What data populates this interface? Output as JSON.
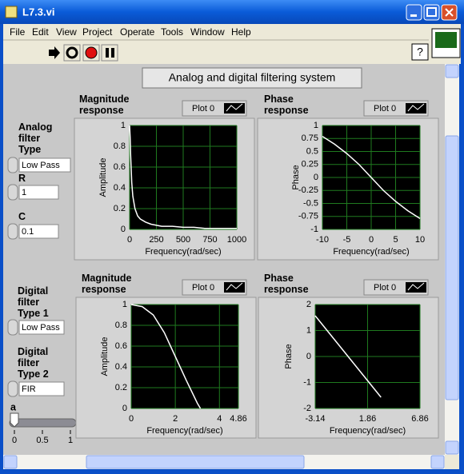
{
  "window": {
    "title": "L7.3.vi"
  },
  "menu": [
    "File",
    "Edit",
    "View",
    "Project",
    "Operate",
    "Tools",
    "Window",
    "Help"
  ],
  "front_panel": {
    "title": "Analog and digital filtering system",
    "controls": {
      "analog_type": {
        "label": "Analog filter Type",
        "value": "Low Pass"
      },
      "r": {
        "label": "R",
        "value": "1"
      },
      "c": {
        "label": "C",
        "value": "0.1"
      },
      "digital_type_1": {
        "label": "Digital filter Type 1",
        "value": "Low Pass"
      },
      "digital_type_2": {
        "label": "Digital filter Type 2",
        "value": "FIR"
      },
      "a": {
        "label": "a",
        "value": 0,
        "lim": [
          0,
          1
        ],
        "ticks": [
          0,
          0.5,
          1
        ]
      }
    }
  },
  "charts": [
    {
      "type": "line",
      "title": "Magnitude response",
      "xlabel": "Frequency(rad/sec)",
      "ylabel": "Amplitude",
      "x": [
        0,
        5,
        10,
        20,
        30,
        50,
        75,
        100,
        150,
        200,
        300,
        400,
        500,
        600,
        700,
        800,
        900,
        1000
      ],
      "series": [
        {
          "name": "Plot 0",
          "color": "#ffffff",
          "values": [
            1,
            0.89,
            0.71,
            0.45,
            0.32,
            0.2,
            0.13,
            0.1,
            0.07,
            0.05,
            0.03,
            0.03,
            0.02,
            0.02,
            0.01,
            0.01,
            0.01,
            0.01
          ]
        }
      ],
      "xlim": [
        0,
        1000
      ],
      "ylim": [
        0,
        1
      ],
      "xticks": [
        0,
        250,
        500,
        750,
        1000
      ],
      "yticks": [
        0,
        0.2,
        0.4,
        0.6,
        0.8,
        1
      ],
      "grid": true
    },
    {
      "type": "line",
      "title": "Phase response",
      "xlabel": "Frequency(rad/sec)",
      "ylabel": "Phase",
      "x": [
        -10,
        -7.5,
        -5,
        -2.5,
        0,
        2.5,
        5,
        7.5,
        10
      ],
      "series": [
        {
          "name": "Plot 0",
          "color": "#ffffff",
          "values": [
            0.79,
            0.64,
            0.46,
            0.25,
            0,
            -0.25,
            -0.46,
            -0.64,
            -0.79
          ]
        }
      ],
      "xlim": [
        -10,
        10
      ],
      "ylim": [
        -1,
        1
      ],
      "xticks": [
        -10,
        -5,
        0,
        5,
        10
      ],
      "yticks": [
        -1,
        -0.75,
        -0.5,
        -0.25,
        0,
        0.25,
        0.5,
        0.75,
        1
      ],
      "grid": true
    },
    {
      "type": "line",
      "title": "Magnitude response",
      "xlabel": "Frequency(rad/sec)",
      "ylabel": "Amplitude",
      "x": [
        0,
        0.5,
        1,
        1.5,
        2,
        2.5,
        3,
        3.14
      ],
      "series": [
        {
          "name": "Plot 0",
          "color": "#ffffff",
          "values": [
            1,
            0.98,
            0.9,
            0.73,
            0.5,
            0.27,
            0.05,
            0
          ]
        }
      ],
      "xlim": [
        0,
        4.86
      ],
      "ylim": [
        0,
        1
      ],
      "xticks": [
        0,
        2,
        4,
        4.86
      ],
      "yticks": [
        0,
        0.2,
        0.4,
        0.6,
        0.8,
        1
      ],
      "grid": true
    },
    {
      "type": "line",
      "title": "Phase response",
      "xlabel": "Frequency(rad/sec)",
      "ylabel": "Phase",
      "x": [
        -3.14,
        3.14
      ],
      "series": [
        {
          "name": "Plot 0",
          "color": "#ffffff",
          "values": [
            1.57,
            -1.57
          ]
        }
      ],
      "xlim": [
        -3.14,
        6.86
      ],
      "ylim": [
        -2,
        2
      ],
      "xticks": [
        -3.14,
        1.86,
        6.86
      ],
      "yticks": [
        -2,
        -1,
        0,
        1,
        2
      ],
      "grid": true
    }
  ]
}
